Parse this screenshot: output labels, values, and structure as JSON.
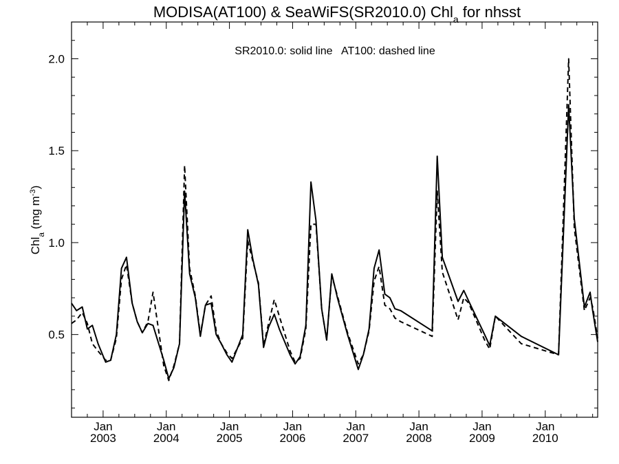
{
  "chart_data": {
    "type": "line",
    "title": "MODISA(AT100) & SeaWiFS(SR2010.0)  Chl",
    "title_sub": "a",
    "title_suffix": " for nhsst",
    "annotation": "SR2010.0: solid line   AT100: dashed line",
    "ylabel": "Chl",
    "ylabel_sub": "a",
    "ylabel_units": " (mg m",
    "ylabel_sup": "-3",
    "ylabel_close": ")",
    "xlim": [
      2002.5,
      2010.83
    ],
    "ylim": [
      0.05,
      2.2
    ],
    "yticks": [
      0.5,
      1.0,
      1.5,
      2.0
    ],
    "ytick_labels": [
      "0.5",
      "1.0",
      "1.5",
      "2.0"
    ],
    "xticks": [
      {
        "value": 2003.0,
        "month": "Jan",
        "year": "2003"
      },
      {
        "value": 2004.0,
        "month": "Jan",
        "year": "2004"
      },
      {
        "value": 2005.0,
        "month": "Jan",
        "year": "2005"
      },
      {
        "value": 2006.0,
        "month": "Jan",
        "year": "2006"
      },
      {
        "value": 2007.0,
        "month": "Jan",
        "year": "2007"
      },
      {
        "value": 2008.0,
        "month": "Jan",
        "year": "2008"
      },
      {
        "value": 2009.0,
        "month": "Jan",
        "year": "2009"
      },
      {
        "value": 2010.0,
        "month": "Jan",
        "year": "2010"
      }
    ],
    "series": [
      {
        "style": "solid",
        "points": [
          [
            2002.5,
            0.67
          ],
          [
            2002.58,
            0.63
          ],
          [
            2002.67,
            0.65
          ],
          [
            2002.75,
            0.53
          ],
          [
            2002.83,
            0.55
          ],
          [
            2002.92,
            0.45
          ],
          [
            2003.04,
            0.35
          ],
          [
            2003.12,
            0.36
          ],
          [
            2003.21,
            0.5
          ],
          [
            2003.29,
            0.86
          ],
          [
            2003.37,
            0.92
          ],
          [
            2003.46,
            0.67
          ],
          [
            2003.54,
            0.57
          ],
          [
            2003.62,
            0.51
          ],
          [
            2003.71,
            0.56
          ],
          [
            2003.79,
            0.55
          ],
          [
            2003.96,
            0.36
          ],
          [
            2004.04,
            0.26
          ],
          [
            2004.12,
            0.32
          ],
          [
            2004.21,
            0.45
          ],
          [
            2004.29,
            1.28
          ],
          [
            2004.37,
            0.83
          ],
          [
            2004.46,
            0.7
          ],
          [
            2004.54,
            0.49
          ],
          [
            2004.62,
            0.66
          ],
          [
            2004.71,
            0.67
          ],
          [
            2004.79,
            0.5
          ],
          [
            2004.87,
            0.45
          ],
          [
            2004.96,
            0.39
          ],
          [
            2005.04,
            0.35
          ],
          [
            2005.21,
            0.5
          ],
          [
            2005.29,
            1.07
          ],
          [
            2005.37,
            0.91
          ],
          [
            2005.46,
            0.77
          ],
          [
            2005.54,
            0.43
          ],
          [
            2005.62,
            0.54
          ],
          [
            2005.71,
            0.61
          ],
          [
            2005.79,
            0.53
          ],
          [
            2005.96,
            0.39
          ],
          [
            2006.04,
            0.34
          ],
          [
            2006.12,
            0.38
          ],
          [
            2006.21,
            0.55
          ],
          [
            2006.29,
            1.33
          ],
          [
            2006.37,
            1.12
          ],
          [
            2006.46,
            0.64
          ],
          [
            2006.54,
            0.47
          ],
          [
            2006.62,
            0.83
          ],
          [
            2006.71,
            0.7
          ],
          [
            2006.87,
            0.5
          ],
          [
            2007.04,
            0.31
          ],
          [
            2007.12,
            0.39
          ],
          [
            2007.21,
            0.53
          ],
          [
            2007.29,
            0.86
          ],
          [
            2007.37,
            0.96
          ],
          [
            2007.46,
            0.72
          ],
          [
            2007.54,
            0.7
          ],
          [
            2007.62,
            0.64
          ],
          [
            2007.71,
            0.63
          ],
          [
            2008.21,
            0.52
          ],
          [
            2008.29,
            1.47
          ],
          [
            2008.37,
            0.92
          ],
          [
            2008.62,
            0.68
          ],
          [
            2008.71,
            0.74
          ],
          [
            2008.79,
            0.68
          ],
          [
            2009.04,
            0.5
          ],
          [
            2009.12,
            0.44
          ],
          [
            2009.21,
            0.6
          ],
          [
            2009.62,
            0.49
          ],
          [
            2010.21,
            0.39
          ],
          [
            2010.37,
            1.75
          ],
          [
            2010.46,
            1.13
          ],
          [
            2010.62,
            0.65
          ],
          [
            2010.71,
            0.73
          ],
          [
            2010.75,
            0.63
          ],
          [
            2010.83,
            0.46
          ]
        ]
      },
      {
        "style": "dashed",
        "points": [
          [
            2002.5,
            0.56
          ],
          [
            2002.58,
            0.58
          ],
          [
            2002.67,
            0.62
          ],
          [
            2002.75,
            0.56
          ],
          [
            2002.83,
            0.45
          ],
          [
            2002.92,
            0.41
          ],
          [
            2003.04,
            0.36
          ],
          [
            2003.12,
            0.36
          ],
          [
            2003.21,
            0.48
          ],
          [
            2003.29,
            0.8
          ],
          [
            2003.37,
            0.88
          ],
          [
            2003.46,
            0.67
          ],
          [
            2003.54,
            0.57
          ],
          [
            2003.62,
            0.51
          ],
          [
            2003.71,
            0.57
          ],
          [
            2003.79,
            0.73
          ],
          [
            2003.96,
            0.33
          ],
          [
            2004.04,
            0.25
          ],
          [
            2004.12,
            0.33
          ],
          [
            2004.21,
            0.45
          ],
          [
            2004.29,
            1.42
          ],
          [
            2004.37,
            0.86
          ],
          [
            2004.46,
            0.71
          ],
          [
            2004.54,
            0.5
          ],
          [
            2004.62,
            0.66
          ],
          [
            2004.71,
            0.71
          ],
          [
            2004.79,
            0.52
          ],
          [
            2004.87,
            0.45
          ],
          [
            2004.96,
            0.4
          ],
          [
            2005.04,
            0.37
          ],
          [
            2005.21,
            0.48
          ],
          [
            2005.29,
            1.01
          ],
          [
            2005.37,
            0.9
          ],
          [
            2005.46,
            0.78
          ],
          [
            2005.54,
            0.44
          ],
          [
            2005.62,
            0.56
          ],
          [
            2005.71,
            0.69
          ],
          [
            2005.79,
            0.6
          ],
          [
            2005.96,
            0.41
          ],
          [
            2006.04,
            0.35
          ],
          [
            2006.12,
            0.37
          ],
          [
            2006.21,
            0.53
          ],
          [
            2006.29,
            1.1
          ],
          [
            2006.37,
            1.1
          ],
          [
            2006.46,
            0.64
          ],
          [
            2006.54,
            0.47
          ],
          [
            2006.62,
            0.82
          ],
          [
            2006.71,
            0.71
          ],
          [
            2006.87,
            0.51
          ],
          [
            2007.04,
            0.34
          ],
          [
            2007.12,
            0.39
          ],
          [
            2007.21,
            0.52
          ],
          [
            2007.29,
            0.79
          ],
          [
            2007.37,
            0.87
          ],
          [
            2007.46,
            0.66
          ],
          [
            2007.54,
            0.64
          ],
          [
            2007.62,
            0.59
          ],
          [
            2007.71,
            0.57
          ],
          [
            2008.21,
            0.49
          ],
          [
            2008.29,
            1.28
          ],
          [
            2008.37,
            0.84
          ],
          [
            2008.62,
            0.58
          ],
          [
            2008.71,
            0.7
          ],
          [
            2008.79,
            0.67
          ],
          [
            2009.04,
            0.47
          ],
          [
            2009.12,
            0.42
          ],
          [
            2009.21,
            0.6
          ],
          [
            2009.62,
            0.45
          ],
          [
            2010.21,
            0.39
          ],
          [
            2010.37,
            2.0
          ],
          [
            2010.46,
            1.08
          ],
          [
            2010.62,
            0.63
          ],
          [
            2010.71,
            0.7
          ],
          [
            2010.75,
            0.65
          ],
          [
            2010.83,
            0.48
          ]
        ]
      }
    ]
  }
}
